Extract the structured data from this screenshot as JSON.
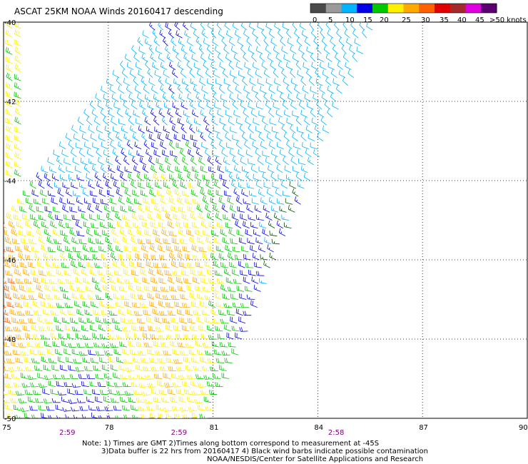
{
  "title": "ASCAT 25KM NOAA Winds 20160417 descending",
  "legend": {
    "unit": "knots",
    "labels": [
      "0",
      "5",
      "10",
      "15",
      "20",
      "25",
      "30",
      "35",
      "40",
      "45",
      ">50 knots"
    ],
    "colors": [
      "#4a4a4a",
      "#9a9a9a",
      "#00b4ff",
      "#0000e6",
      "#00c800",
      "#fff000",
      "#ffaa00",
      "#ff6000",
      "#e00000",
      "#a52a2a",
      "#e000e0",
      "#5a0070"
    ]
  },
  "map": {
    "lon_ticks": [
      "75",
      "78",
      "81",
      "84",
      "87",
      "90"
    ],
    "lat_ticks": [
      "-40",
      "-42",
      "-44",
      "-46",
      "-48",
      "-50"
    ],
    "lon_range": [
      75,
      90
    ],
    "lat_range": [
      -50,
      -40
    ],
    "times": [
      {
        "lon": 76.8,
        "label": "2:59"
      },
      {
        "lon": 80.0,
        "label": "2:59"
      },
      {
        "lon": 84.5,
        "label": "2:58"
      }
    ],
    "time_color": "#800080",
    "swath": {
      "west_edge": [
        [
          75,
          -45.3
        ],
        [
          79.5,
          -40
        ]
      ],
      "east_edge": [
        [
          81,
          -50
        ],
        [
          85.7,
          -40
        ]
      ]
    }
  },
  "notes": [
    "Note: 1) Times are GMT 2)Times along bottom correspond to measurement at -45S",
    "3)Data buffer is 22 hrs from 20160417 4) Black wind barbs indicate possible contamination",
    "NOAA/NESDIS/Center for Satellite Applications and Research"
  ]
}
